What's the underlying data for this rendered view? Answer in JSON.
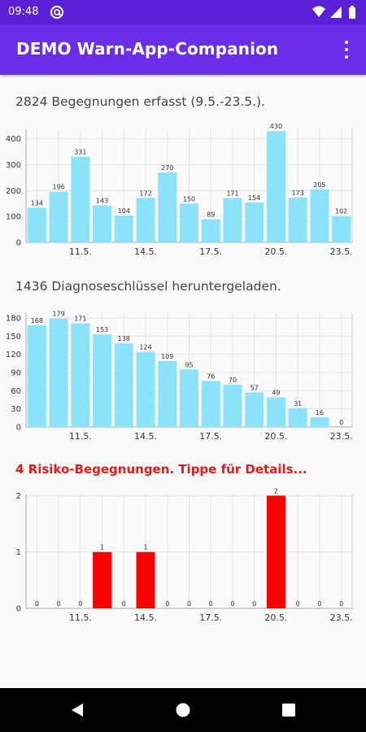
{
  "status_bar": {
    "time": "09:48",
    "notification_icon": "at-sign-icon",
    "icons": [
      "wifi-icon",
      "signal-icon",
      "battery-icon"
    ]
  },
  "app_bar": {
    "title": "DEMO Warn-App-Companion",
    "menu_icon": "overflow-menu-icon"
  },
  "sections": {
    "encounters": {
      "title": "2824 Begegnungen erfasst (9.5.-23.5.)."
    },
    "keys": {
      "title": "1436 Diagnoseschlüssel heruntergeladen."
    },
    "risk": {
      "title": "4 Risiko-Begegnungen. Tippe für Details..."
    }
  },
  "chart_data": [
    {
      "type": "bar",
      "title": "2824 Begegnungen erfasst (9.5.-23.5.).",
      "categories": [
        "9.5.",
        "10.5.",
        "11.5.",
        "12.5.",
        "13.5.",
        "14.5.",
        "15.5.",
        "16.5.",
        "17.5.",
        "18.5.",
        "19.5.",
        "20.5.",
        "21.5.",
        "22.5.",
        "23.5."
      ],
      "x_tick_labels": [
        "11.5.",
        "14.5.",
        "17.5.",
        "20.5.",
        "23.5."
      ],
      "values": [
        134,
        196,
        331,
        143,
        104,
        172,
        270,
        150,
        89,
        171,
        154,
        430,
        173,
        205,
        102
      ],
      "y_ticks": [
        0,
        100,
        200,
        300,
        400
      ],
      "ylim": [
        0,
        440
      ],
      "grid": true,
      "color": "#8be3fb"
    },
    {
      "type": "bar",
      "title": "1436 Diagnoseschlüssel heruntergeladen.",
      "categories": [
        "9.5.",
        "10.5.",
        "11.5.",
        "12.5.",
        "13.5.",
        "14.5.",
        "15.5.",
        "16.5.",
        "17.5.",
        "18.5.",
        "19.5.",
        "20.5.",
        "21.5.",
        "22.5.",
        "23.5."
      ],
      "x_tick_labels": [
        "11.5.",
        "14.5.",
        "17.5.",
        "20.5.",
        "23.5."
      ],
      "values": [
        168,
        179,
        171,
        153,
        138,
        124,
        109,
        95,
        76,
        70,
        57,
        49,
        31,
        16,
        0
      ],
      "y_ticks": [
        0,
        30,
        60,
        90,
        120,
        150,
        180
      ],
      "ylim": [
        0,
        188
      ],
      "grid": true,
      "color": "#8be3fb"
    },
    {
      "type": "bar",
      "title": "4 Risiko-Begegnungen. Tippe für Details...",
      "categories": [
        "9.5.",
        "10.5.",
        "11.5.",
        "12.5.",
        "13.5.",
        "14.5.",
        "15.5.",
        "16.5.",
        "17.5.",
        "18.5.",
        "19.5.",
        "20.5.",
        "21.5.",
        "22.5.",
        "23.5."
      ],
      "x_tick_labels": [
        "11.5.",
        "14.5.",
        "17.5.",
        "20.5.",
        "23.5."
      ],
      "values": [
        0,
        0,
        0,
        1,
        0,
        1,
        0,
        0,
        0,
        0,
        0,
        2,
        0,
        0,
        0
      ],
      "y_ticks": [
        0,
        1,
        2
      ],
      "ylim": [
        0,
        2.02
      ],
      "grid": true,
      "color": "#ff0000"
    }
  ],
  "nav_bar": {
    "icons": [
      "back-icon",
      "home-icon",
      "recents-icon"
    ]
  }
}
